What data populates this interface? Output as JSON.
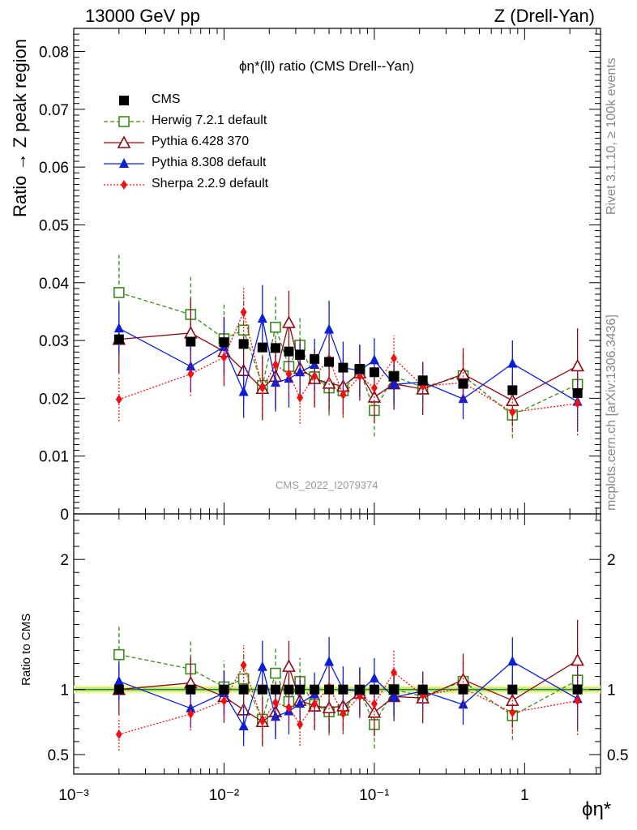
{
  "header": {
    "left": "13000 GeV pp",
    "right": "Z (Drell-Yan)"
  },
  "side_labels": {
    "top": "Rivet 3.1.10, ≥ 100k events",
    "middle": "mcplots.cern.ch [arXiv:1306.3436]"
  },
  "plot_title": "ϕη*(ll) ratio (CMS Drell--Yan)",
  "watermark": "CMS_2022_I2079374",
  "chart_data": {
    "type": "scatter",
    "title": "ϕη*(ll) ratio (CMS Drell--Yan)",
    "ylabel": "Ratio → Z peak region",
    "ratio_ylabel": "Ratio to CMS",
    "xlabel": "ϕη*",
    "xscale": "log",
    "xlim": [
      0.001,
      3.2
    ],
    "ylim": [
      0,
      0.084
    ],
    "ratio_ylim": [
      0.35,
      2.35
    ],
    "x_tick_labels": [
      "10⁻³",
      "10⁻²",
      "10⁻¹",
      "1"
    ],
    "y_tick_labels": [
      "0",
      "0.01",
      "0.02",
      "0.03",
      "0.04",
      "0.05",
      "0.06",
      "0.07",
      "0.08"
    ],
    "ratio_tick_labels": [
      "0.5",
      "1",
      "2"
    ],
    "x": [
      0.002,
      0.006,
      0.01,
      0.0135,
      0.018,
      0.022,
      0.027,
      0.032,
      0.04,
      0.05,
      0.062,
      0.08,
      0.1,
      0.135,
      0.21,
      0.39,
      0.83,
      2.25
    ],
    "series": [
      {
        "name": "CMS",
        "color": "#000000",
        "marker": "square-filled",
        "line": "none",
        "values": [
          0.0302,
          0.0298,
          0.0297,
          0.0294,
          0.0288,
          0.0287,
          0.0281,
          0.0275,
          0.0268,
          0.0263,
          0.0253,
          0.0251,
          0.0245,
          0.0238,
          0.0231,
          0.0225,
          0.0214,
          0.0209
        ],
        "errors": [
          0.0006,
          0.0006,
          0.0006,
          0.0006,
          0.0005,
          0.0005,
          0.0005,
          0.0005,
          0.0005,
          0.0005,
          0.0005,
          0.0005,
          0.0005,
          0.0005,
          0.0005,
          0.0005,
          0.0005,
          0.0006
        ]
      },
      {
        "name": "Herwig 7.2.1 default",
        "color": "#3a8a1a",
        "marker": "square-open",
        "line": "dashed",
        "values": [
          0.0383,
          0.0345,
          0.0303,
          0.0318,
          0.0222,
          0.0323,
          0.0255,
          0.0292,
          0.0237,
          0.0218,
          0.0213,
          0.0249,
          0.0179,
          0.0238,
          0.0219,
          0.0239,
          0.0171,
          0.0224
        ],
        "errors": [
          0.0065,
          0.0065,
          0.006,
          0.0058,
          0.0055,
          0.0055,
          0.0052,
          0.005,
          0.0048,
          0.0048,
          0.0045,
          0.0045,
          0.0045,
          0.004,
          0.004,
          0.0038,
          0.004,
          0.0045
        ]
      },
      {
        "name": "Pythia 6.428 370",
        "color": "#8b0a14",
        "marker": "triangle-open",
        "line": "solid",
        "values": [
          0.0302,
          0.0313,
          0.0281,
          0.0248,
          0.0217,
          0.0238,
          0.0331,
          0.0252,
          0.0234,
          0.0226,
          0.0221,
          0.0244,
          0.0202,
          0.0225,
          0.0216,
          0.0242,
          0.0196,
          0.0256
        ],
        "errors": [
          0.006,
          0.006,
          0.006,
          0.0058,
          0.0055,
          0.0055,
          0.0055,
          0.005,
          0.005,
          0.005,
          0.0048,
          0.0048,
          0.0045,
          0.0045,
          0.0045,
          0.0045,
          0.0045,
          0.0065
        ]
      },
      {
        "name": "Pythia 8.308 default",
        "color": "#0a1ed6",
        "marker": "triangle-filled",
        "line": "solid",
        "values": [
          0.0321,
          0.0255,
          0.0289,
          0.0211,
          0.0338,
          0.0227,
          0.0234,
          0.0245,
          0.0258,
          0.0319,
          0.0253,
          0.0248,
          0.0266,
          0.0224,
          0.0228,
          0.0199,
          0.026,
          0.0194
        ],
        "errors": [
          0.0045,
          0.0045,
          0.005,
          0.0045,
          0.0058,
          0.005,
          0.005,
          0.005,
          0.0045,
          0.005,
          0.0045,
          0.0045,
          0.0038,
          0.0035,
          0.0035,
          0.0035,
          0.004,
          0.005
        ]
      },
      {
        "name": "Sherpa 2.2.9 default",
        "color": "#ee1111",
        "marker": "diamond-filled",
        "line": "dotted",
        "values": [
          0.0198,
          0.0242,
          0.0271,
          0.0349,
          0.0218,
          0.0258,
          0.0242,
          0.0201,
          0.0238,
          0.0268,
          0.0206,
          0.0238,
          0.0218,
          0.0269,
          0.0221,
          0.0227,
          0.0176,
          0.0191
        ],
        "errors": [
          0.0038,
          0.0038,
          0.0042,
          0.0045,
          0.0045,
          0.0045,
          0.0045,
          0.0045,
          0.0045,
          0.0045,
          0.004,
          0.004,
          0.004,
          0.004,
          0.0038,
          0.0035,
          0.0035,
          0.0055
        ]
      }
    ],
    "legend_position": "top-left"
  }
}
